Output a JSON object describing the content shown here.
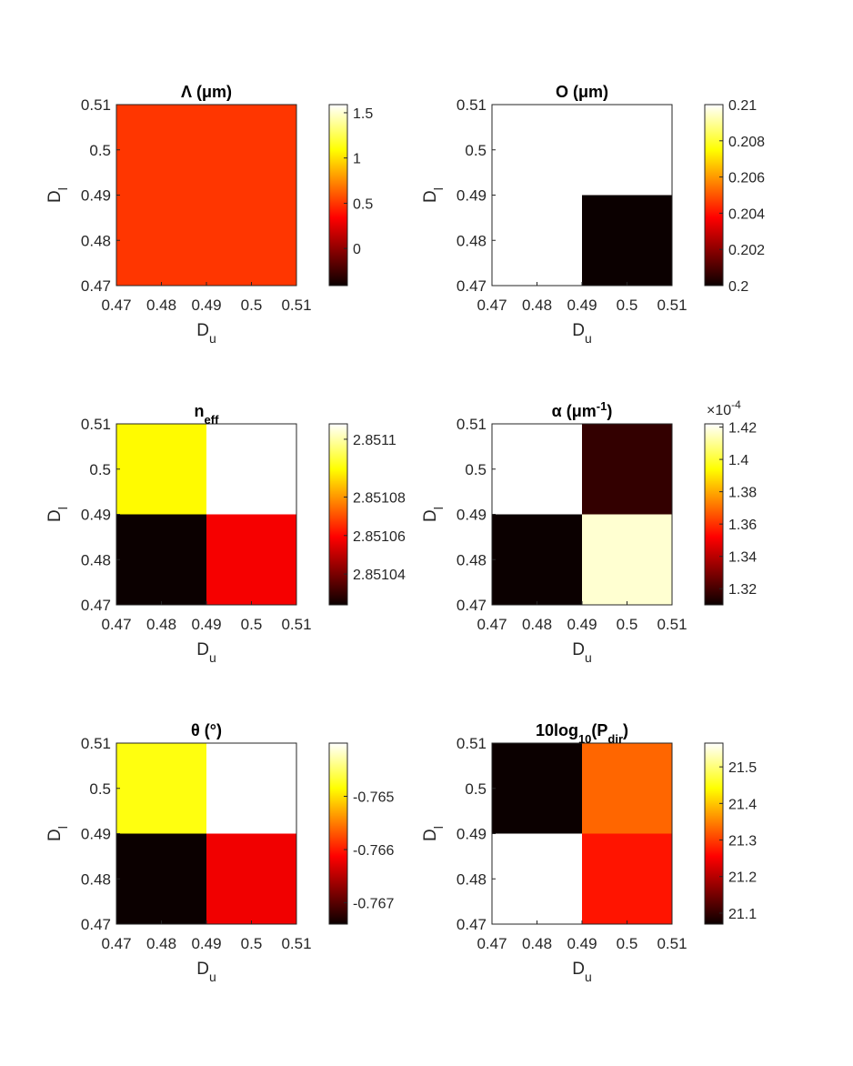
{
  "colormap": "hot",
  "chart_data": [
    {
      "type": "heatmap",
      "title": "Λ (μm)",
      "xlabel": "Du",
      "ylabel": "Dl",
      "x_range": [
        0.47,
        0.51
      ],
      "y_range": [
        0.47,
        0.51
      ],
      "xticks": [
        "0.47",
        "0.48",
        "0.49",
        "0.5",
        "0.51"
      ],
      "yticks": [
        "0.51",
        "0.5",
        "0.49",
        "0.48",
        "0.47"
      ],
      "cells": [
        [
          1,
          1
        ],
        [
          1,
          1
        ]
      ],
      "clim": [
        -0.41,
        1.59
      ],
      "cells_value": [
        [
          0.5,
          0.5
        ],
        [
          0.5,
          0.5
        ]
      ],
      "colorbar_ticks": [
        {
          "v": 1.5,
          "label": "1.5"
        },
        {
          "v": 1,
          "label": "1"
        },
        {
          "v": 0.5,
          "label": "0.5"
        },
        {
          "v": 0,
          "label": "0"
        }
      ],
      "colorbar_exponent": ""
    },
    {
      "type": "heatmap",
      "title": "O (μm)",
      "xlabel": "Du",
      "ylabel": "Dl",
      "x_range": [
        0.47,
        0.51
      ],
      "y_range": [
        0.47,
        0.51
      ],
      "xticks": [
        "0.47",
        "0.48",
        "0.49",
        "0.5",
        "0.51"
      ],
      "yticks": [
        "0.51",
        "0.5",
        "0.49",
        "0.48",
        "0.47"
      ],
      "clim": [
        0.2,
        0.21
      ],
      "cells_value": [
        [
          0.21,
          0.21
        ],
        [
          0.21,
          0.2
        ]
      ],
      "colorbar_ticks": [
        {
          "v": 0.21,
          "label": "0.21"
        },
        {
          "v": 0.208,
          "label": "0.208"
        },
        {
          "v": 0.206,
          "label": "0.206"
        },
        {
          "v": 0.204,
          "label": "0.204"
        },
        {
          "v": 0.202,
          "label": "0.202"
        },
        {
          "v": 0.2,
          "label": "0.2"
        }
      ],
      "colorbar_exponent": ""
    },
    {
      "type": "heatmap",
      "title": "neff",
      "xlabel": "Du",
      "ylabel": "Dl",
      "x_range": [
        0.47,
        0.51
      ],
      "y_range": [
        0.47,
        0.51
      ],
      "xticks": [
        "0.47",
        "0.48",
        "0.49",
        "0.5",
        "0.51"
      ],
      "yticks": [
        "0.51",
        "0.5",
        "0.49",
        "0.48",
        "0.47"
      ],
      "clim": [
        2.851024,
        2.851118
      ],
      "cells_value": [
        [
          2.851094,
          2.851118
        ],
        [
          2.851024,
          2.851058
        ]
      ],
      "colorbar_ticks": [
        {
          "v": 2.85111,
          "label": "2.8511"
        },
        {
          "v": 2.85108,
          "label": "2.85108"
        },
        {
          "v": 2.85106,
          "label": "2.85106"
        },
        {
          "v": 2.85104,
          "label": "2.85104"
        }
      ],
      "colorbar_exponent": ""
    },
    {
      "type": "heatmap",
      "title": "α (μm-1)",
      "xlabel": "Du",
      "ylabel": "Dl",
      "x_range": [
        0.47,
        0.51
      ],
      "y_range": [
        0.47,
        0.51
      ],
      "xticks": [
        "0.47",
        "0.48",
        "0.49",
        "0.5",
        "0.51"
      ],
      "yticks": [
        "0.51",
        "0.5",
        "0.49",
        "0.48",
        "0.47"
      ],
      "clim": [
        1.31,
        1.422
      ],
      "cells_value": [
        [
          1.422,
          1.317
        ],
        [
          1.31,
          1.417
        ]
      ],
      "colorbar_ticks": [
        {
          "v": 1.42,
          "label": "1.42"
        },
        {
          "v": 1.4,
          "label": "1.4"
        },
        {
          "v": 1.38,
          "label": "1.38"
        },
        {
          "v": 1.36,
          "label": "1.36"
        },
        {
          "v": 1.34,
          "label": "1.34"
        },
        {
          "v": 1.32,
          "label": "1.32"
        }
      ],
      "colorbar_exponent": "×10-4"
    },
    {
      "type": "heatmap",
      "title": "θ (°)",
      "xlabel": "Du",
      "ylabel": "Dl",
      "x_range": [
        0.47,
        0.51
      ],
      "y_range": [
        0.47,
        0.51
      ],
      "xticks": [
        "0.47",
        "0.48",
        "0.49",
        "0.5",
        "0.51"
      ],
      "yticks": [
        "0.51",
        "0.5",
        "0.49",
        "0.48",
        "0.47"
      ],
      "clim": [
        -0.7674,
        -0.764
      ],
      "cells_value": [
        [
          -0.7648,
          -0.764
        ],
        [
          -0.7674,
          -0.7662
        ]
      ],
      "colorbar_ticks": [
        {
          "v": -0.765,
          "label": "-0.765"
        },
        {
          "v": -0.766,
          "label": "-0.766"
        },
        {
          "v": -0.767,
          "label": "-0.767"
        }
      ],
      "colorbar_exponent": ""
    },
    {
      "type": "heatmap",
      "title": "10log10(Pdir)",
      "xlabel": "Du",
      "ylabel": "Dl",
      "x_range": [
        0.47,
        0.51
      ],
      "y_range": [
        0.47,
        0.51
      ],
      "xticks": [
        "0.47",
        "0.48",
        "0.49",
        "0.5",
        "0.51"
      ],
      "yticks": [
        "0.51",
        "0.5",
        "0.49",
        "0.48",
        "0.47"
      ],
      "clim": [
        21.07,
        21.565
      ],
      "cells_value": [
        [
          21.07,
          21.33
        ],
        [
          21.565,
          21.27
        ]
      ],
      "colorbar_ticks": [
        {
          "v": 21.5,
          "label": "21.5"
        },
        {
          "v": 21.4,
          "label": "21.4"
        },
        {
          "v": 21.3,
          "label": "21.3"
        },
        {
          "v": 21.2,
          "label": "21.2"
        },
        {
          "v": 21.1,
          "label": "21.1"
        }
      ],
      "colorbar_exponent": ""
    }
  ]
}
